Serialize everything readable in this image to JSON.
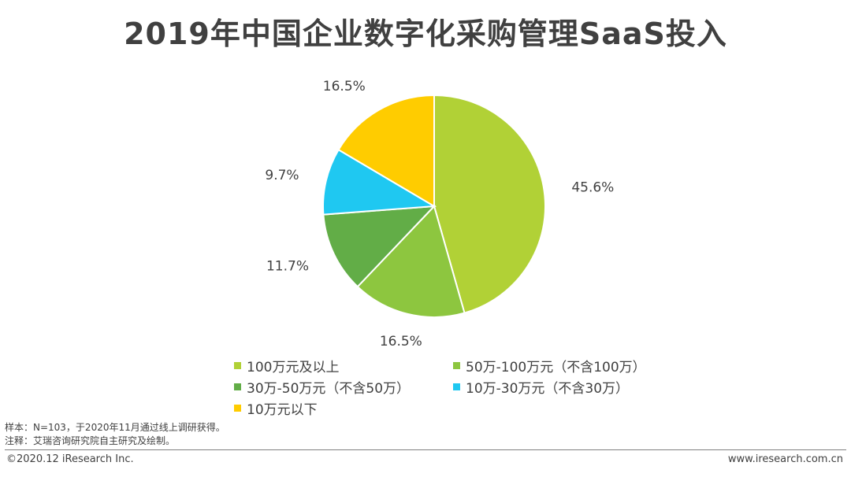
{
  "title": "2019年中国企业数字化采购管理SaaS投入",
  "chart_data": {
    "type": "pie",
    "title": "2019年中国企业数字化采购管理SaaS投入",
    "slices": [
      {
        "label": "100万元及以上",
        "value": 45.6,
        "display": "45.6%",
        "color": "#b1d136"
      },
      {
        "label": "50万-100万元（不含100万）",
        "value": 16.5,
        "display": "16.5%",
        "color": "#8dc63f"
      },
      {
        "label": "30万-50万元（不含50万）",
        "value": 11.7,
        "display": "11.7%",
        "color": "#62ad47"
      },
      {
        "label": "10万-30万元（不含30万）",
        "value": 9.7,
        "display": "9.7%",
        "color": "#1fc8f1"
      },
      {
        "label": "10万元以下",
        "value": 16.5,
        "display": "16.5%",
        "color": "#ffcc00"
      }
    ],
    "legend_position": "bottom"
  },
  "notes": {
    "sample": "样本：N=103，于2020年11月通过线上调研获得。",
    "note": "注释：艾瑞咨询研究院自主研究及绘制。"
  },
  "footer": {
    "copyright": "©2020.12 iResearch Inc.",
    "website": "www.iresearch.com.cn"
  }
}
